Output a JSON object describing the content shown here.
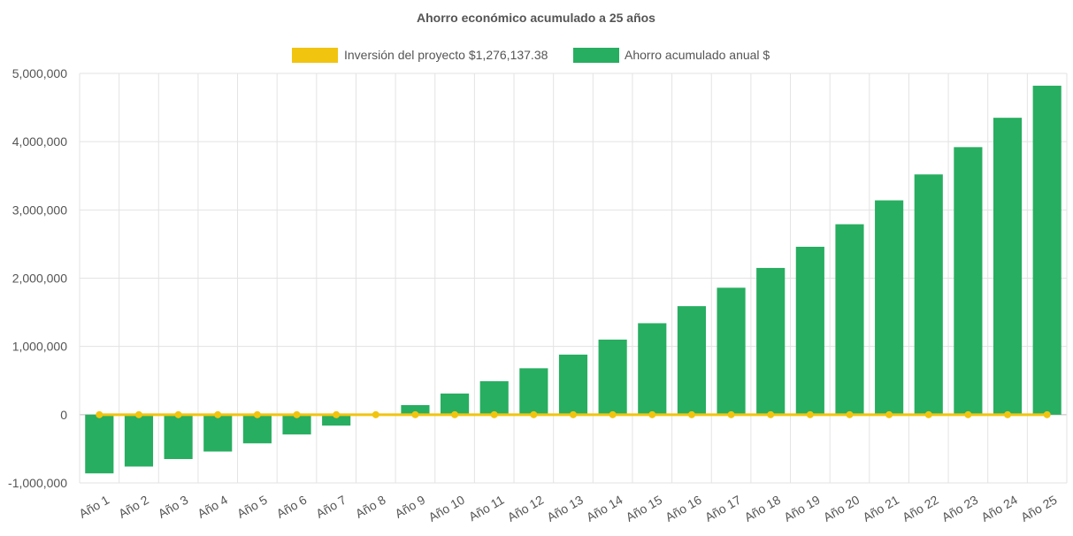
{
  "chart_data": {
    "type": "bar",
    "title": "Ahorro económico acumulado a 25 años",
    "categories": [
      "Año 1",
      "Año 2",
      "Año 3",
      "Año 4",
      "Año 5",
      "Año 6",
      "Año 7",
      "Año 8",
      "Año 9",
      "Año 10",
      "Año 11",
      "Año 12",
      "Año 13",
      "Año 14",
      "Año 15",
      "Año 16",
      "Año 17",
      "Año 18",
      "Año 19",
      "Año 20",
      "Año 21",
      "Año 22",
      "Año 23",
      "Año 24",
      "Año 25"
    ],
    "series": [
      {
        "name": "Inversión del proyecto $1,276,137.38",
        "type": "line",
        "color": "#f1c40f",
        "values": [
          0,
          0,
          0,
          0,
          0,
          0,
          0,
          0,
          0,
          0,
          0,
          0,
          0,
          0,
          0,
          0,
          0,
          0,
          0,
          0,
          0,
          0,
          0,
          0,
          0
        ]
      },
      {
        "name": "Ahorro acumulado anual $",
        "type": "bar",
        "color": "#27ae60",
        "values": [
          -860000,
          -760000,
          -650000,
          -540000,
          -420000,
          -290000,
          -160000,
          -10000,
          140000,
          310000,
          490000,
          680000,
          880000,
          1100000,
          1340000,
          1590000,
          1860000,
          2150000,
          2460000,
          2790000,
          3140000,
          3520000,
          3920000,
          4350000,
          4820000
        ]
      }
    ],
    "yticks": [
      "5,000,000",
      "4,000,000",
      "3,000,000",
      "2,000,000",
      "1,000,000",
      "0",
      "-1,000,000"
    ],
    "ylim": [
      -1000000,
      5000000
    ],
    "grid": true,
    "legend": "top"
  }
}
